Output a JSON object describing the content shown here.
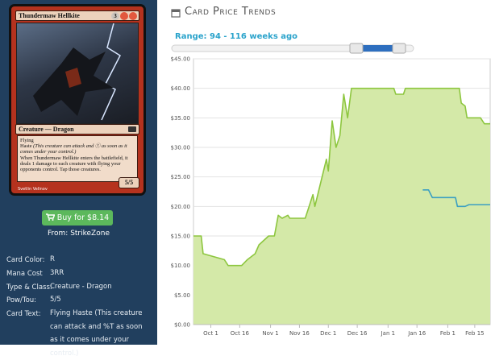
{
  "card": {
    "name": "Thundermaw Hellkite",
    "mana_symbol": "3",
    "type_line": "Creature — Dragon",
    "rules": [
      "Flying",
      "Haste",
      "(This creature can attack and ⓣ as soon as it comes under your control.)",
      "When Thundermaw Hellkite enters the battlefield, it deals 1 damage to each creature with flying your opponents control. Tap those creatures."
    ],
    "pt": "5/5",
    "artist": "Svetlin Velinov"
  },
  "buy": {
    "button": "Buy for $8.14",
    "source": "From: StrikeZone"
  },
  "details": [
    {
      "label": "Card Color:",
      "value": "R"
    },
    {
      "label": "Mana Cost",
      "value": "3RR"
    },
    {
      "label": "Type & Class:",
      "value": "Creature - Dragon"
    },
    {
      "label": "Pow/Tou:",
      "value": "5/5"
    },
    {
      "label": "Card Text:",
      "value": "Flying Haste (This creature can attack and %T as soon as it comes under your control.)"
    }
  ],
  "panel": {
    "title": "Card Price Trends",
    "range": "Range: 94 - 116 weeks ago"
  },
  "chart_data": {
    "type": "line",
    "xlim": [
      "Sep 22",
      "Feb 23"
    ],
    "xticks": [
      "Oct 1",
      "Oct 16",
      "Nov 1",
      "Nov 16",
      "Dec 1",
      "Dec 16",
      "Jan 1",
      "Jan 16",
      "Feb 1",
      "Feb 15"
    ],
    "ylim": [
      0,
      45
    ],
    "yticks": [
      {
        "value": 0,
        "label": "$0.00"
      },
      {
        "value": 5,
        "label": "$5.00"
      },
      {
        "value": 10,
        "label": "$10.00"
      },
      {
        "value": 15,
        "label": "$15.00"
      },
      {
        "value": 20,
        "label": "$20.00"
      },
      {
        "value": 25,
        "label": "$25.00"
      },
      {
        "value": 30,
        "label": "$30.00"
      },
      {
        "value": 35,
        "label": "$35.00"
      },
      {
        "value": 40,
        "label": "$40.00"
      },
      {
        "value": 45,
        "label": "$45.00"
      }
    ],
    "grid": true,
    "series": [
      {
        "color": "#8dc63f",
        "fill": "#d4e9a8",
        "x": [
          "Sep 22",
          "Sep 26",
          "Sep 27",
          "Oct 8",
          "Oct 10",
          "Oct 17",
          "Oct 20",
          "Oct 24",
          "Oct 26",
          "Oct 31",
          "Nov 3",
          "Nov 5",
          "Nov 7",
          "Nov 10",
          "Nov 11",
          "Nov 19",
          "Nov 21",
          "Nov 23",
          "Nov 24",
          "Nov 27",
          "Nov 30",
          "Dec 1",
          "Dec 3",
          "Dec 5",
          "Dec 7",
          "Dec 9",
          "Dec 11",
          "Dec 13",
          "Jan 4",
          "Jan 5",
          "Jan 9",
          "Jan 10",
          "Feb 7",
          "Feb 8",
          "Feb 10",
          "Feb 11",
          "Feb 18",
          "Feb 20",
          "Feb 23"
        ],
        "values": [
          15,
          15,
          12,
          11,
          10,
          10,
          11,
          12,
          13.5,
          15,
          15,
          18.5,
          18,
          18.5,
          18,
          18,
          20,
          22,
          20,
          24,
          28,
          26,
          34.5,
          30,
          32,
          39,
          35,
          40,
          40,
          39,
          39,
          40,
          40,
          37.5,
          37,
          35,
          35,
          34,
          34
        ]
      },
      {
        "color": "#3a9fc2",
        "x": [
          "Jan 19",
          "Jan 22",
          "Jan 24",
          "Feb 5",
          "Feb 6",
          "Feb 10",
          "Feb 12",
          "Feb 23"
        ],
        "values": [
          22.8,
          22.8,
          21.5,
          21.5,
          20,
          20,
          20.3,
          20.3
        ]
      }
    ]
  }
}
